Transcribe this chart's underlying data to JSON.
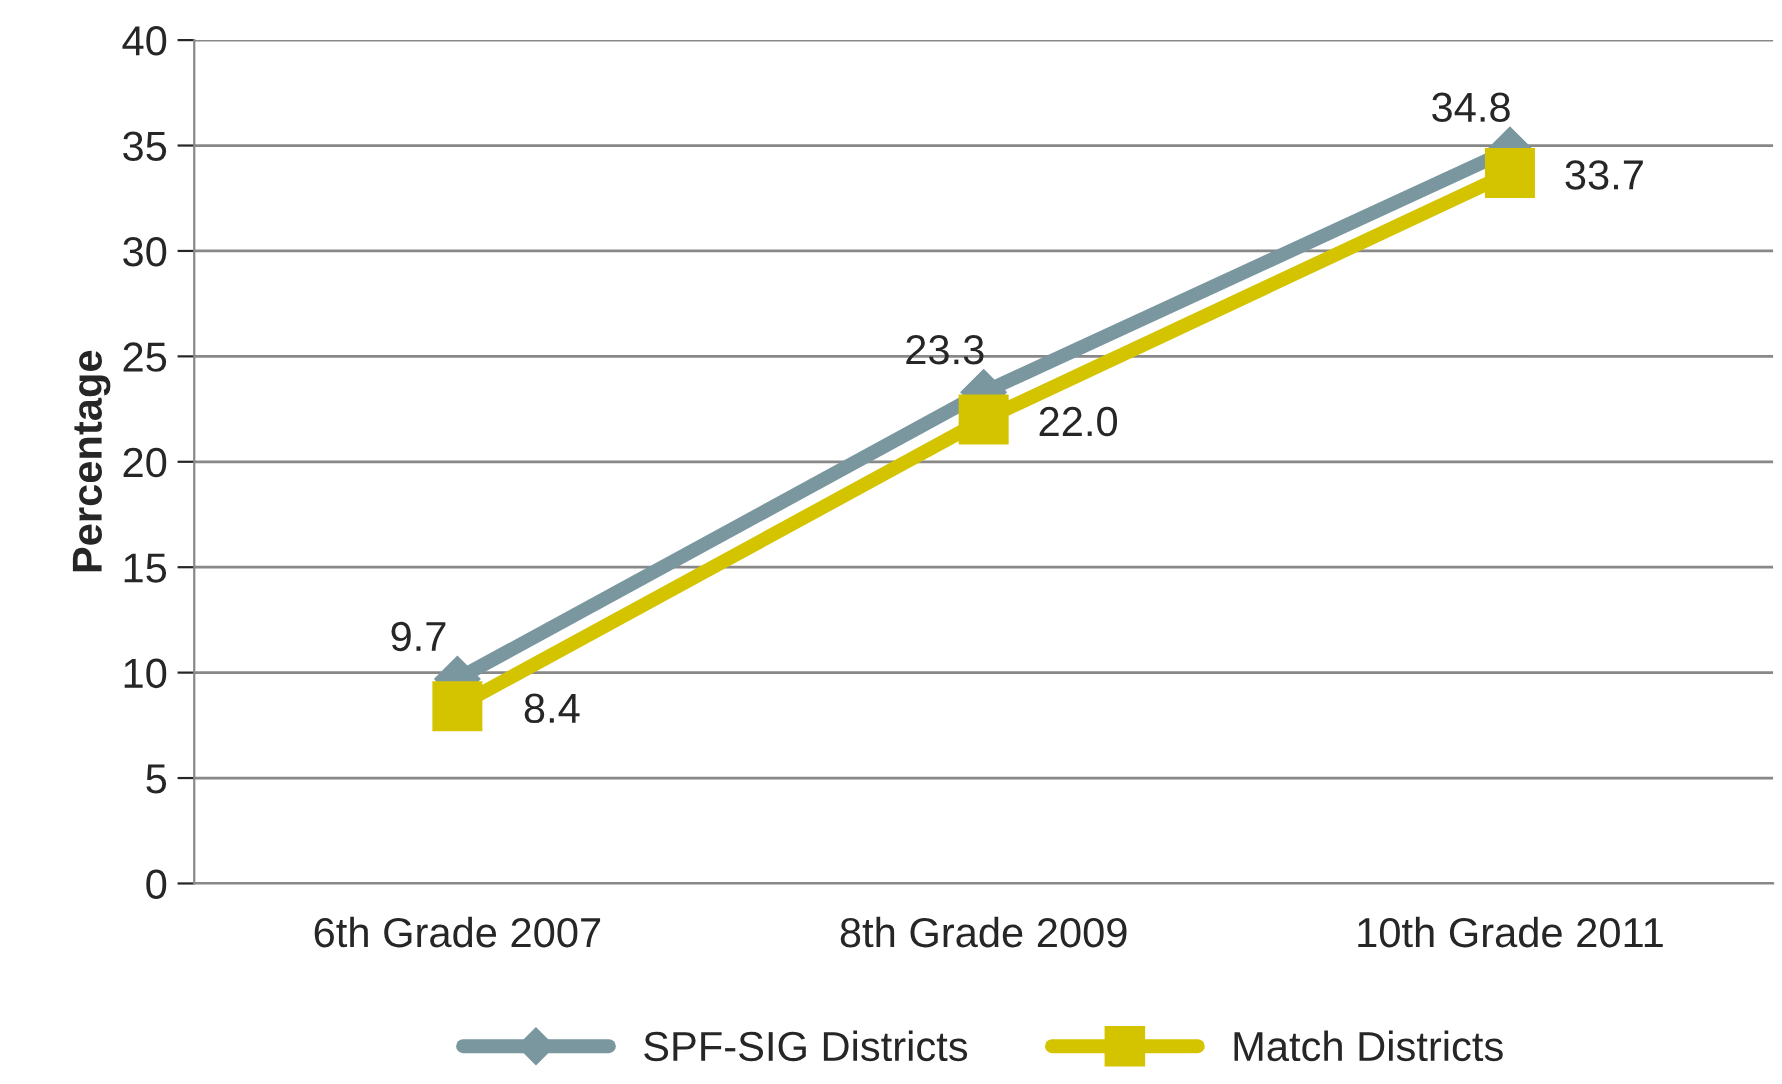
{
  "chart_data": {
    "type": "line",
    "ylabel": "Percentage",
    "categories": [
      "6th Grade 2007",
      "8th Grade 2009",
      "10th Grade 2011"
    ],
    "series": [
      {
        "name": "SPF-SIG Districts",
        "color": "#7a97a0",
        "values": [
          9.7,
          23.3,
          34.8
        ],
        "value_labels": [
          "9.7",
          "23.3",
          "34.8"
        ],
        "marker": "diamond"
      },
      {
        "name": "Match Districts",
        "color": "#d4c400",
        "values": [
          8.4,
          22.0,
          33.7
        ],
        "value_labels": [
          "8.4",
          "22.0",
          "33.7"
        ],
        "marker": "square"
      }
    ],
    "ylim": [
      0,
      40
    ],
    "yticks": [
      0,
      5,
      10,
      15,
      20,
      25,
      30,
      35,
      40
    ],
    "grid": "y",
    "legend": "bottom",
    "line_style": "solid"
  }
}
